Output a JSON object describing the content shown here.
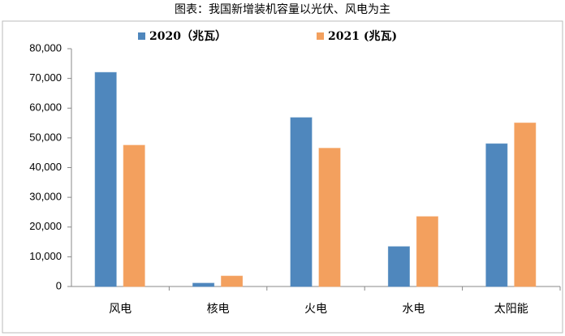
{
  "chart_data": {
    "type": "bar",
    "title": "图表：我国新增装机容量以光伏、风电为主",
    "categories": [
      "风电",
      "核电",
      "火电",
      "水电",
      "太阳能"
    ],
    "series": [
      {
        "name": "2020（兆瓦）",
        "color": "#4f87bd",
        "values": [
          72000,
          1100,
          56800,
          13400,
          48000
        ]
      },
      {
        "name": "2021 (兆瓦)",
        "color": "#f3a05e",
        "values": [
          47500,
          3500,
          46500,
          23500,
          55000
        ]
      }
    ],
    "ylim": [
      0,
      80000
    ],
    "yticks": [
      0,
      {
        "value": 10000,
        "label": "10,000"
      },
      {
        "value": 20000,
        "label": "20,000"
      },
      {
        "value": 30000,
        "label": "30,000"
      },
      {
        "value": 40000,
        "label": "40,000"
      },
      {
        "value": 50000,
        "label": "50,000"
      },
      {
        "value": 60000,
        "label": "60,000"
      },
      {
        "value": 70000,
        "label": "70,000"
      },
      {
        "value": 80000,
        "label": "80,000"
      }
    ],
    "grid": false
  }
}
